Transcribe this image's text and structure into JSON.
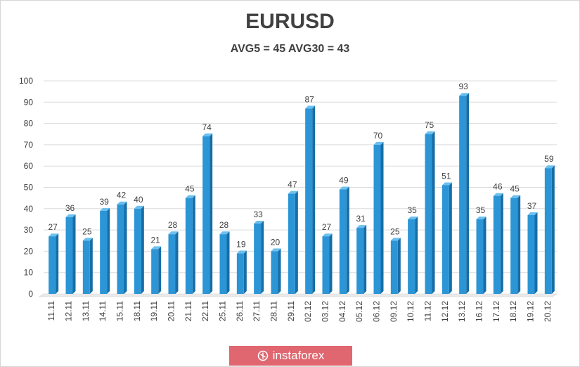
{
  "chart_data": {
    "type": "bar",
    "title": "EURUSD",
    "subtitle": "AVG5 = 45 AVG30 = 43",
    "xlabel": "",
    "ylabel": "",
    "ylim": [
      0,
      100
    ],
    "yticks": [
      0,
      10,
      20,
      30,
      40,
      50,
      60,
      70,
      80,
      90,
      100
    ],
    "grid": true,
    "legend": "none",
    "bar_color": "#2b95d6",
    "categories": [
      "11.11",
      "12.11",
      "13.11",
      "14.11",
      "15.11",
      "18.11",
      "19.11",
      "20.11",
      "21.11",
      "22.11",
      "25.11",
      "26.11",
      "27.11",
      "28.11",
      "29.11",
      "02.12",
      "03.12",
      "04.12",
      "05.12",
      "06.12",
      "09.12",
      "10.12",
      "11.12",
      "12.12",
      "13.12",
      "16.12",
      "17.12",
      "18.12",
      "19.12",
      "20.12"
    ],
    "values": [
      27,
      36,
      25,
      39,
      42,
      40,
      21,
      28,
      45,
      74,
      28,
      19,
      33,
      20,
      47,
      87,
      27,
      49,
      31,
      70,
      25,
      35,
      75,
      51,
      93,
      35,
      46,
      45,
      37,
      59
    ]
  },
  "watermark": {
    "text": "instaforex",
    "icon": "instaforex-logo-icon",
    "color": "#e0666f"
  }
}
